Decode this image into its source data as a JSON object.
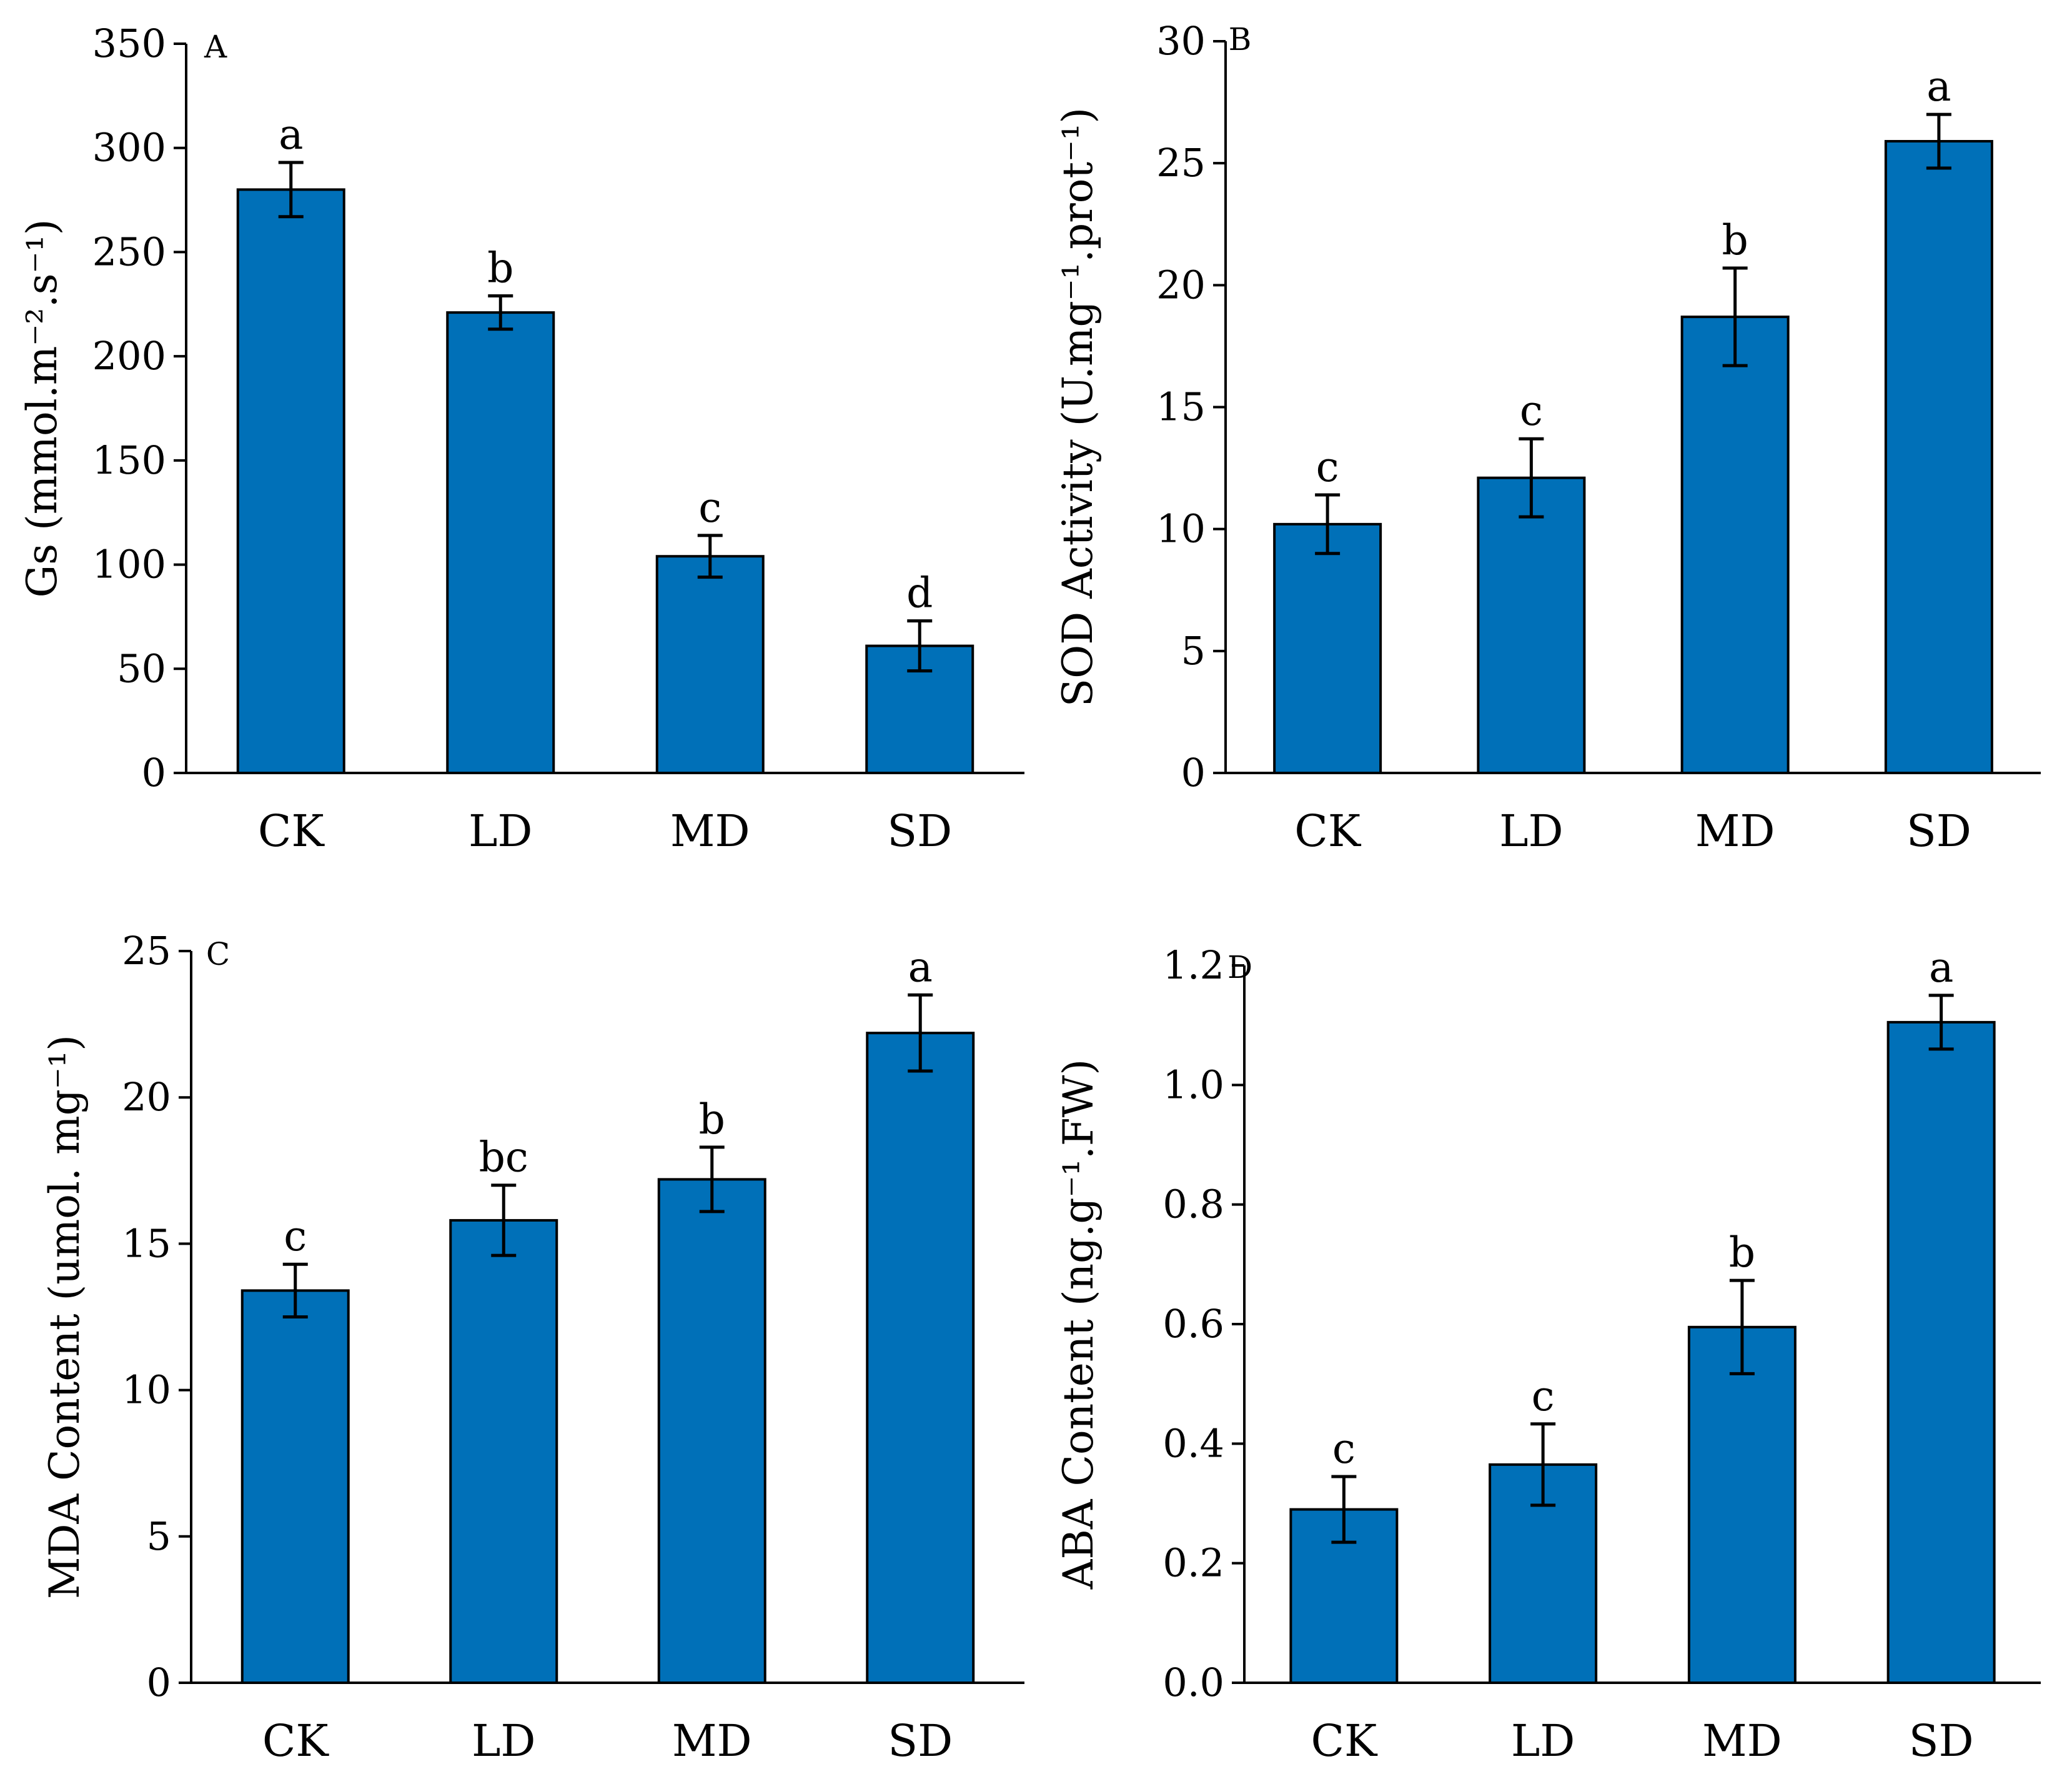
{
  "bar_color": "#0070B8",
  "chart_data": [
    {
      "type": "bar",
      "panel": "A",
      "categories": [
        "CK",
        "LD",
        "MD",
        "SD"
      ],
      "values": [
        280,
        221,
        104,
        61
      ],
      "errors": [
        13,
        8,
        10,
        12
      ],
      "significance": [
        "a",
        "b",
        "c",
        "d"
      ],
      "ylabel": "Gs (mmol.m⁻².s⁻¹)",
      "ylim": [
        0,
        350
      ],
      "yticks": [
        0,
        50,
        100,
        150,
        200,
        250,
        300,
        350
      ],
      "ytick_labels": [
        "0",
        "50",
        "100",
        "150",
        "200",
        "250",
        "300",
        "350"
      ]
    },
    {
      "type": "bar",
      "panel": "B",
      "categories": [
        "CK",
        "LD",
        "MD",
        "SD"
      ],
      "values": [
        10.2,
        12.1,
        18.7,
        25.9
      ],
      "errors": [
        1.2,
        1.6,
        2.0,
        1.1
      ],
      "significance": [
        "c",
        "c",
        "b",
        "a"
      ],
      "ylabel": "SOD Activity (U.mg⁻¹.prot⁻¹)",
      "ylim": [
        0,
        30
      ],
      "yticks": [
        0,
        5,
        10,
        15,
        20,
        25,
        30
      ],
      "ytick_labels": [
        "0",
        "5",
        "10",
        "15",
        "20",
        "25",
        "30"
      ]
    },
    {
      "type": "bar",
      "panel": "C",
      "categories": [
        "CK",
        "LD",
        "MD",
        "SD"
      ],
      "values": [
        13.4,
        15.8,
        17.2,
        22.2
      ],
      "errors": [
        0.9,
        1.2,
        1.1,
        1.3
      ],
      "significance": [
        "c",
        "bc",
        "b",
        "a"
      ],
      "ylabel": "MDA Content (umol. mg⁻¹)",
      "ylim": [
        0,
        25
      ],
      "yticks": [
        0,
        5,
        10,
        15,
        20,
        25
      ],
      "ytick_labels": [
        "0",
        "5",
        "10",
        "15",
        "20",
        "25"
      ]
    },
    {
      "type": "bar",
      "panel": "D",
      "categories": [
        "CK",
        "LD",
        "MD",
        "SD"
      ],
      "values": [
        0.29,
        0.365,
        0.595,
        1.105
      ],
      "errors": [
        0.055,
        0.068,
        0.078,
        0.045
      ],
      "significance": [
        "c",
        "c",
        "b",
        "a"
      ],
      "ylabel": "ABA Content (ng.g⁻¹.FW)",
      "ylim": [
        0,
        1.2
      ],
      "yticks": [
        0,
        0.2,
        0.4,
        0.6,
        0.8,
        1.0,
        1.2
      ],
      "ytick_labels": [
        "0.0",
        "0.2",
        "0.4",
        "0.6",
        "0.8",
        "1.0",
        "1.2"
      ]
    }
  ]
}
